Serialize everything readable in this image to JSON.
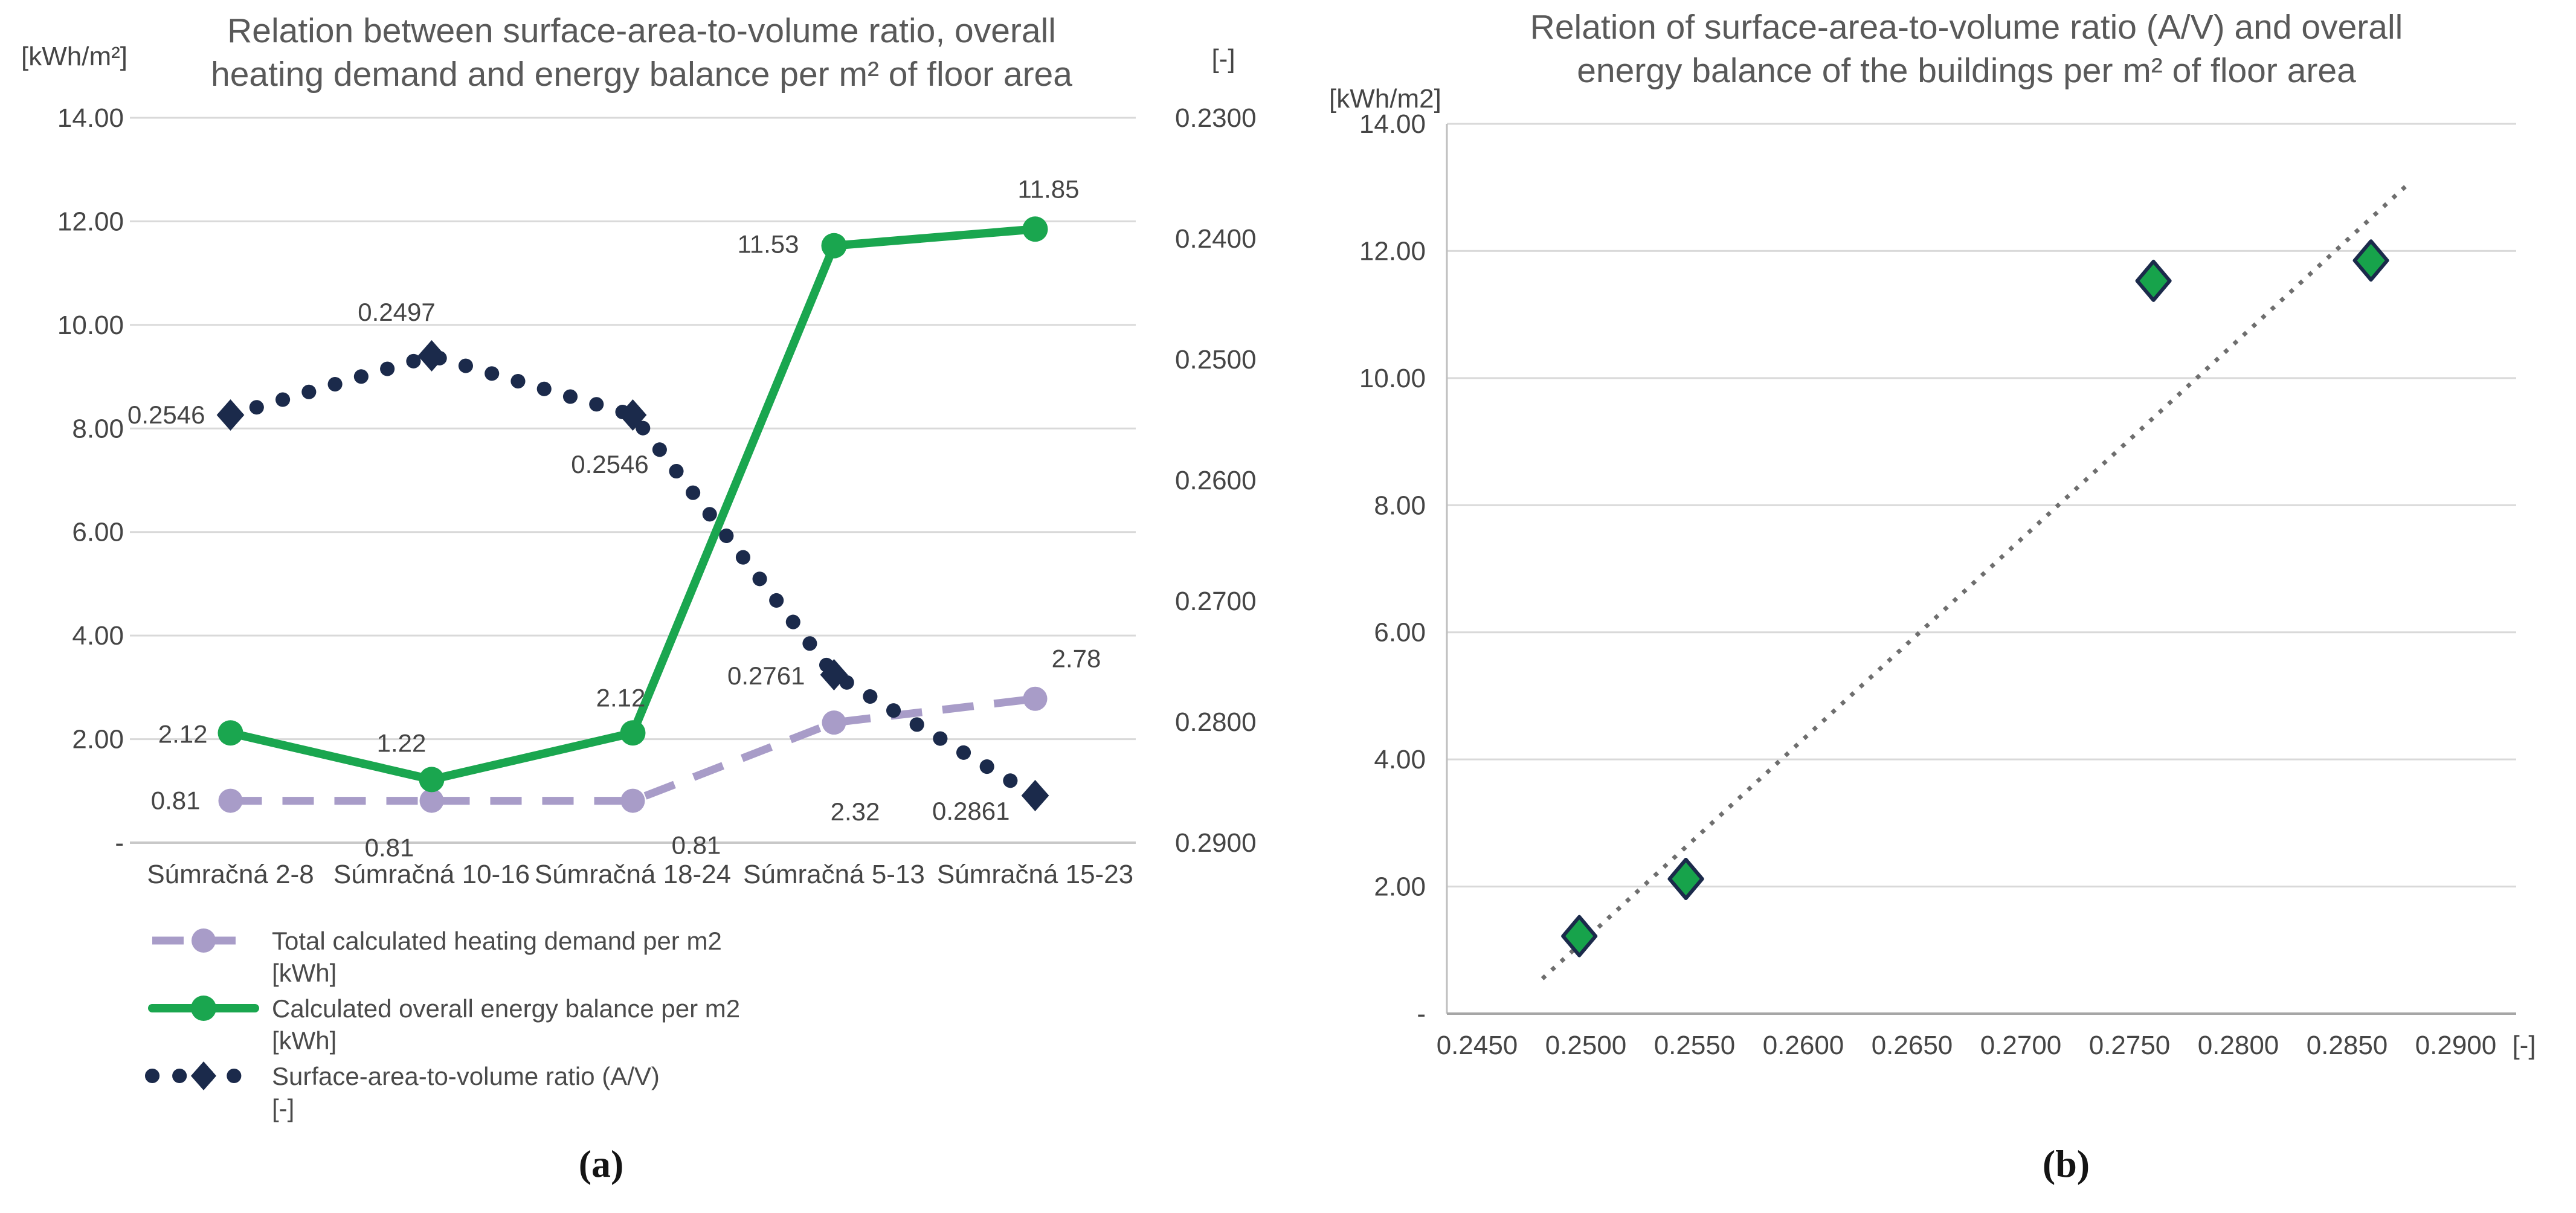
{
  "figure": {
    "caption_a": "(a)",
    "caption_b": "(b)"
  },
  "colors": {
    "heating_demand": "#a89cc8",
    "energy_balance": "#1aa64f",
    "av_ratio": "#1b2a4b",
    "diamond_fill": "#17a34b",
    "diamond_border": "#1b2a4b",
    "trendline": "#6e6e6e",
    "gridline": "#d9d9d9",
    "zero_line": "#c8c8c8",
    "axis_left_b": "#bfbfbf",
    "axis_bottom_b": "#a6a6a6",
    "title_text": "#595959",
    "tick_text": "#454545"
  },
  "chart_data": [
    {
      "id": "chart-a",
      "type": "line",
      "title_lines": [
        "Relation between surface-area-to-volume ratio, overall",
        "heating demand and energy balance per m² of floor area"
      ],
      "left_axis_label": "[kWh/m²]",
      "right_axis_label": "[-]",
      "categories": [
        "Súmračná 2-8",
        "Súmračná 10-16",
        "Súmračná 18-24",
        "Súmračná 5-13",
        "Súmračná 15-23"
      ],
      "left_axis": {
        "min": 0,
        "max": 14,
        "step": 2,
        "tick_labels": [
          "-",
          "2.00",
          "4.00",
          "6.00",
          "8.00",
          "10.00",
          "12.00",
          "14.00"
        ]
      },
      "right_axis": {
        "min": 0.23,
        "max": 0.29,
        "step": 0.01,
        "reversed": true,
        "tick_labels": [
          "0.2300",
          "0.2400",
          "0.2500",
          "0.2600",
          "0.2700",
          "0.2800",
          "0.2900"
        ]
      },
      "grid": true,
      "legend_position": "bottom-left",
      "series": [
        {
          "name": "Total calculated heating demand per m2 [kWh]",
          "legend_lines": [
            "Total calculated heating demand per m2",
            "[kWh]"
          ],
          "axis": "left",
          "style": "dashed",
          "marker": "circle",
          "color_key": "heating_demand",
          "values": [
            0.81,
            0.81,
            0.81,
            2.32,
            2.78
          ],
          "labels": [
            "0.81",
            "0.81",
            "0.81",
            "2.32",
            "2.78"
          ]
        },
        {
          "name": "Calculated overall energy balance per m2 [kWh]",
          "legend_lines": [
            "Calculated overall energy balance per m2",
            "[kWh]"
          ],
          "axis": "left",
          "style": "solid",
          "marker": "circle",
          "color_key": "energy_balance",
          "values": [
            2.12,
            1.22,
            2.12,
            11.53,
            11.85
          ],
          "labels": [
            "2.12",
            "1.22",
            "2.12",
            "11.53",
            "11.85"
          ]
        },
        {
          "name": "Surface-area-to-volume ratio (A/V) [-]",
          "legend_lines": [
            "Surface-area-to-volume ratio (A/V)",
            "[-]"
          ],
          "axis": "right",
          "style": "dotted",
          "marker": "diamond",
          "color_key": "av_ratio",
          "values": [
            0.2546,
            0.2497,
            0.2546,
            0.2761,
            0.2861
          ],
          "labels": [
            "0.2546",
            "0.2497",
            "0.2546",
            "0.2761",
            "0.2861"
          ]
        }
      ]
    },
    {
      "id": "chart-b",
      "type": "scatter",
      "title_lines": [
        "Relation of surface-area-to-volume ratio (A/V) and overall",
        "energy balance of the buildings per m² of floor area"
      ],
      "y_axis_label": "[kWh/m2]",
      "x_axis_label": "[-]",
      "y_axis": {
        "min": 0,
        "max": 14,
        "step": 2,
        "tick_labels": [
          "-",
          "2.00",
          "4.00",
          "6.00",
          "8.00",
          "10.00",
          "12.00",
          "14.00"
        ]
      },
      "x_axis": {
        "min": 0.245,
        "max": 0.29,
        "step": 0.005,
        "tick_labels": [
          "0.2450",
          "0.2500",
          "0.2550",
          "0.2600",
          "0.2650",
          "0.2700",
          "0.2750",
          "0.2800",
          "0.2850",
          "0.2900"
        ]
      },
      "grid": true,
      "points": [
        {
          "x": 0.2546,
          "y": 2.12
        },
        {
          "x": 0.2497,
          "y": 1.22
        },
        {
          "x": 0.2546,
          "y": 2.12
        },
        {
          "x": 0.2761,
          "y": 11.53
        },
        {
          "x": 0.2861,
          "y": 11.85
        }
      ],
      "trendline": {
        "style": "dotted",
        "x1": 0.248,
        "y1": 0.55,
        "x2": 0.2878,
        "y2": 13.05
      }
    }
  ]
}
